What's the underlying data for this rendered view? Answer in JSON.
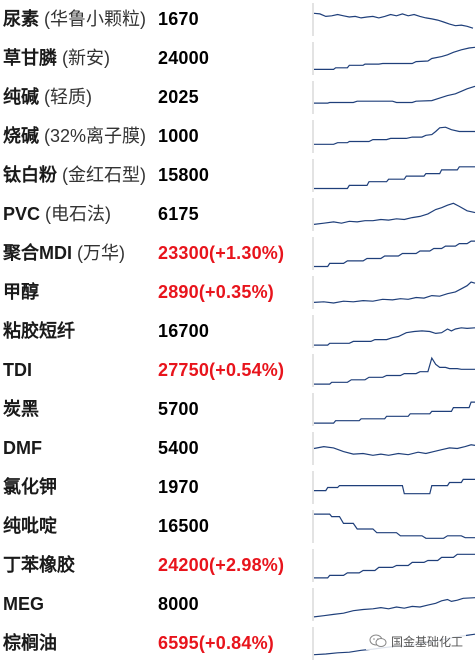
{
  "rows": [
    {
      "name": "尿素",
      "sub": " (华鲁小颗粒)",
      "price": "1670",
      "up": false,
      "spark": [
        [
          0,
          0.7
        ],
        [
          6,
          0.68
        ],
        [
          12,
          0.6
        ],
        [
          18,
          0.62
        ],
        [
          24,
          0.66
        ],
        [
          30,
          0.62
        ],
        [
          36,
          0.58
        ],
        [
          42,
          0.6
        ],
        [
          48,
          0.55
        ],
        [
          54,
          0.58
        ],
        [
          60,
          0.6
        ],
        [
          66,
          0.55
        ],
        [
          72,
          0.6
        ],
        [
          78,
          0.66
        ],
        [
          84,
          0.62
        ],
        [
          90,
          0.68
        ],
        [
          96,
          0.62
        ],
        [
          102,
          0.66
        ],
        [
          108,
          0.6
        ],
        [
          114,
          0.55
        ],
        [
          120,
          0.52
        ],
        [
          126,
          0.48
        ],
        [
          132,
          0.42
        ],
        [
          138,
          0.35
        ],
        [
          144,
          0.3
        ],
        [
          150,
          0.32
        ],
        [
          156,
          0.28
        ],
        [
          162,
          0.22
        ]
      ]
    },
    {
      "name": "草甘膦",
      "sub": " (新安)",
      "price": "24000",
      "up": false,
      "spark": [
        [
          0,
          0.15
        ],
        [
          10,
          0.15
        ],
        [
          20,
          0.15
        ],
        [
          22,
          0.2
        ],
        [
          34,
          0.2
        ],
        [
          36,
          0.28
        ],
        [
          50,
          0.28
        ],
        [
          52,
          0.32
        ],
        [
          66,
          0.32
        ],
        [
          70,
          0.34
        ],
        [
          100,
          0.34
        ],
        [
          104,
          0.4
        ],
        [
          116,
          0.42
        ],
        [
          120,
          0.5
        ],
        [
          130,
          0.56
        ],
        [
          136,
          0.62
        ],
        [
          142,
          0.7
        ],
        [
          150,
          0.78
        ],
        [
          158,
          0.84
        ],
        [
          164,
          0.86
        ]
      ]
    },
    {
      "name": "纯碱",
      "sub": " (轻质)",
      "price": "2025",
      "up": false,
      "spark": [
        [
          0,
          0.32
        ],
        [
          14,
          0.32
        ],
        [
          16,
          0.34
        ],
        [
          40,
          0.34
        ],
        [
          44,
          0.38
        ],
        [
          80,
          0.38
        ],
        [
          84,
          0.34
        ],
        [
          100,
          0.34
        ],
        [
          104,
          0.38
        ],
        [
          120,
          0.4
        ],
        [
          128,
          0.48
        ],
        [
          136,
          0.56
        ],
        [
          144,
          0.62
        ],
        [
          150,
          0.7
        ],
        [
          156,
          0.78
        ],
        [
          164,
          0.86
        ]
      ]
    },
    {
      "name": "烧碱",
      "sub": " (32%离子膜)",
      "price": "1000",
      "up": false,
      "spark": [
        [
          0,
          0.25
        ],
        [
          20,
          0.25
        ],
        [
          24,
          0.3
        ],
        [
          34,
          0.3
        ],
        [
          36,
          0.34
        ],
        [
          56,
          0.34
        ],
        [
          60,
          0.4
        ],
        [
          74,
          0.4
        ],
        [
          78,
          0.44
        ],
        [
          94,
          0.44
        ],
        [
          100,
          0.48
        ],
        [
          110,
          0.48
        ],
        [
          114,
          0.54
        ],
        [
          120,
          0.56
        ],
        [
          124,
          0.66
        ],
        [
          128,
          0.78
        ],
        [
          134,
          0.8
        ],
        [
          140,
          0.72
        ],
        [
          148,
          0.66
        ],
        [
          156,
          0.66
        ],
        [
          164,
          0.66
        ]
      ]
    },
    {
      "name": "钛白粉",
      "sub": " (金红石型)",
      "price": "15800",
      "up": false,
      "spark": [
        [
          0,
          0.08
        ],
        [
          34,
          0.08
        ],
        [
          36,
          0.18
        ],
        [
          54,
          0.18
        ],
        [
          56,
          0.3
        ],
        [
          74,
          0.3
        ],
        [
          76,
          0.38
        ],
        [
          92,
          0.38
        ],
        [
          94,
          0.48
        ],
        [
          112,
          0.48
        ],
        [
          114,
          0.56
        ],
        [
          128,
          0.56
        ],
        [
          130,
          0.68
        ],
        [
          146,
          0.68
        ],
        [
          148,
          0.78
        ],
        [
          164,
          0.78
        ]
      ]
    },
    {
      "name": "PVC",
      "sub": " (电石法)",
      "price": "6175",
      "up": false,
      "spark": [
        [
          0,
          0.18
        ],
        [
          10,
          0.22
        ],
        [
          20,
          0.26
        ],
        [
          28,
          0.22
        ],
        [
          36,
          0.28
        ],
        [
          44,
          0.26
        ],
        [
          52,
          0.3
        ],
        [
          60,
          0.3
        ],
        [
          68,
          0.34
        ],
        [
          76,
          0.32
        ],
        [
          84,
          0.36
        ],
        [
          92,
          0.34
        ],
        [
          100,
          0.4
        ],
        [
          108,
          0.44
        ],
        [
          116,
          0.52
        ],
        [
          124,
          0.66
        ],
        [
          130,
          0.72
        ],
        [
          136,
          0.8
        ],
        [
          142,
          0.86
        ],
        [
          148,
          0.76
        ],
        [
          156,
          0.62
        ],
        [
          164,
          0.56
        ]
      ]
    },
    {
      "name": "聚合MDI",
      "sub": " (万华)",
      "price": "23300(+1.30%)",
      "up": true,
      "spark": [
        [
          0,
          0.08
        ],
        [
          14,
          0.08
        ],
        [
          16,
          0.18
        ],
        [
          30,
          0.18
        ],
        [
          34,
          0.26
        ],
        [
          50,
          0.26
        ],
        [
          54,
          0.34
        ],
        [
          68,
          0.34
        ],
        [
          72,
          0.42
        ],
        [
          86,
          0.42
        ],
        [
          90,
          0.5
        ],
        [
          104,
          0.5
        ],
        [
          108,
          0.58
        ],
        [
          118,
          0.58
        ],
        [
          122,
          0.66
        ],
        [
          130,
          0.66
        ],
        [
          134,
          0.74
        ],
        [
          144,
          0.74
        ],
        [
          148,
          0.82
        ],
        [
          156,
          0.82
        ],
        [
          160,
          0.9
        ],
        [
          164,
          0.9
        ]
      ]
    },
    {
      "name": "甲醇",
      "sub": "",
      "price": "2890(+0.35%)",
      "up": true,
      "spark": [
        [
          0,
          0.18
        ],
        [
          10,
          0.2
        ],
        [
          20,
          0.16
        ],
        [
          30,
          0.22
        ],
        [
          40,
          0.2
        ],
        [
          50,
          0.24
        ],
        [
          60,
          0.22
        ],
        [
          70,
          0.28
        ],
        [
          80,
          0.26
        ],
        [
          88,
          0.3
        ],
        [
          96,
          0.28
        ],
        [
          104,
          0.34
        ],
        [
          112,
          0.32
        ],
        [
          120,
          0.4
        ],
        [
          128,
          0.38
        ],
        [
          136,
          0.46
        ],
        [
          144,
          0.52
        ],
        [
          150,
          0.62
        ],
        [
          156,
          0.72
        ],
        [
          160,
          0.84
        ],
        [
          164,
          0.8
        ]
      ]
    },
    {
      "name": "粘胶短纤",
      "sub": "",
      "price": "16700",
      "up": false,
      "spark": [
        [
          0,
          0.06
        ],
        [
          14,
          0.06
        ],
        [
          16,
          0.12
        ],
        [
          36,
          0.12
        ],
        [
          40,
          0.18
        ],
        [
          58,
          0.18
        ],
        [
          62,
          0.24
        ],
        [
          74,
          0.24
        ],
        [
          80,
          0.3
        ],
        [
          86,
          0.34
        ],
        [
          94,
          0.46
        ],
        [
          102,
          0.5
        ],
        [
          110,
          0.52
        ],
        [
          118,
          0.5
        ],
        [
          124,
          0.44
        ],
        [
          130,
          0.46
        ],
        [
          136,
          0.58
        ],
        [
          140,
          0.52
        ],
        [
          144,
          0.58
        ],
        [
          150,
          0.62
        ],
        [
          156,
          0.6
        ],
        [
          164,
          0.62
        ]
      ]
    },
    {
      "name": "TDI",
      "sub": "",
      "price": "27750(+0.54%)",
      "up": true,
      "spark": [
        [
          0,
          0.06
        ],
        [
          16,
          0.06
        ],
        [
          18,
          0.12
        ],
        [
          34,
          0.12
        ],
        [
          38,
          0.2
        ],
        [
          52,
          0.2
        ],
        [
          56,
          0.28
        ],
        [
          70,
          0.28
        ],
        [
          74,
          0.34
        ],
        [
          88,
          0.34
        ],
        [
          92,
          0.4
        ],
        [
          104,
          0.4
        ],
        [
          108,
          0.46
        ],
        [
          116,
          0.46
        ],
        [
          120,
          0.9
        ],
        [
          124,
          0.7
        ],
        [
          128,
          0.6
        ],
        [
          134,
          0.6
        ],
        [
          138,
          0.56
        ],
        [
          146,
          0.56
        ],
        [
          150,
          0.54
        ],
        [
          164,
          0.54
        ]
      ]
    },
    {
      "name": "炭黑",
      "sub": "",
      "price": "5700",
      "up": false,
      "spark": [
        [
          0,
          0.06
        ],
        [
          20,
          0.06
        ],
        [
          22,
          0.14
        ],
        [
          46,
          0.14
        ],
        [
          48,
          0.2
        ],
        [
          72,
          0.2
        ],
        [
          74,
          0.28
        ],
        [
          96,
          0.28
        ],
        [
          98,
          0.36
        ],
        [
          118,
          0.36
        ],
        [
          120,
          0.44
        ],
        [
          140,
          0.44
        ],
        [
          142,
          0.56
        ],
        [
          158,
          0.56
        ],
        [
          160,
          0.74
        ],
        [
          164,
          0.74
        ]
      ]
    },
    {
      "name": "DMF",
      "sub": "",
      "price": "5400",
      "up": false,
      "spark": [
        [
          0,
          0.5
        ],
        [
          10,
          0.56
        ],
        [
          20,
          0.52
        ],
        [
          30,
          0.4
        ],
        [
          40,
          0.32
        ],
        [
          50,
          0.34
        ],
        [
          60,
          0.28
        ],
        [
          68,
          0.32
        ],
        [
          76,
          0.28
        ],
        [
          86,
          0.34
        ],
        [
          96,
          0.3
        ],
        [
          106,
          0.38
        ],
        [
          114,
          0.34
        ],
        [
          122,
          0.4
        ],
        [
          130,
          0.46
        ],
        [
          138,
          0.52
        ],
        [
          146,
          0.5
        ],
        [
          154,
          0.56
        ],
        [
          160,
          0.62
        ],
        [
          164,
          0.6
        ]
      ]
    },
    {
      "name": "氯化钾",
      "sub": "",
      "price": "1970",
      "up": false,
      "spark": [
        [
          0,
          0.4
        ],
        [
          12,
          0.4
        ],
        [
          14,
          0.5
        ],
        [
          24,
          0.5
        ],
        [
          26,
          0.56
        ],
        [
          90,
          0.56
        ],
        [
          92,
          0.3
        ],
        [
          118,
          0.3
        ],
        [
          120,
          0.56
        ],
        [
          136,
          0.56
        ],
        [
          138,
          0.66
        ],
        [
          150,
          0.66
        ],
        [
          152,
          0.76
        ],
        [
          164,
          0.76
        ]
      ]
    },
    {
      "name": "纯吡啶",
      "sub": "",
      "price": "16500",
      "up": false,
      "spark": [
        [
          0,
          0.9
        ],
        [
          16,
          0.9
        ],
        [
          18,
          0.82
        ],
        [
          26,
          0.82
        ],
        [
          30,
          0.6
        ],
        [
          40,
          0.6
        ],
        [
          44,
          0.42
        ],
        [
          60,
          0.42
        ],
        [
          64,
          0.3
        ],
        [
          84,
          0.3
        ],
        [
          88,
          0.2
        ],
        [
          110,
          0.2
        ],
        [
          114,
          0.12
        ],
        [
          132,
          0.12
        ],
        [
          136,
          0.2
        ],
        [
          150,
          0.2
        ],
        [
          154,
          0.14
        ],
        [
          164,
          0.14
        ]
      ]
    },
    {
      "name": "丁苯橡胶",
      "sub": "",
      "price": "24200(+2.98%)",
      "up": true,
      "spark": [
        [
          0,
          0.1
        ],
        [
          14,
          0.1
        ],
        [
          16,
          0.18
        ],
        [
          30,
          0.18
        ],
        [
          34,
          0.26
        ],
        [
          46,
          0.26
        ],
        [
          50,
          0.34
        ],
        [
          62,
          0.34
        ],
        [
          66,
          0.44
        ],
        [
          80,
          0.44
        ],
        [
          84,
          0.5
        ],
        [
          96,
          0.5
        ],
        [
          100,
          0.6
        ],
        [
          112,
          0.6
        ],
        [
          116,
          0.66
        ],
        [
          126,
          0.66
        ],
        [
          130,
          0.76
        ],
        [
          142,
          0.76
        ],
        [
          146,
          0.86
        ],
        [
          164,
          0.86
        ]
      ]
    },
    {
      "name": "MEG",
      "sub": "",
      "price": "8000",
      "up": false,
      "spark": [
        [
          0,
          0.1
        ],
        [
          10,
          0.14
        ],
        [
          20,
          0.18
        ],
        [
          30,
          0.22
        ],
        [
          40,
          0.3
        ],
        [
          50,
          0.34
        ],
        [
          60,
          0.36
        ],
        [
          68,
          0.4
        ],
        [
          76,
          0.36
        ],
        [
          84,
          0.42
        ],
        [
          92,
          0.38
        ],
        [
          100,
          0.44
        ],
        [
          108,
          0.42
        ],
        [
          116,
          0.48
        ],
        [
          124,
          0.54
        ],
        [
          130,
          0.62
        ],
        [
          136,
          0.66
        ],
        [
          140,
          0.6
        ],
        [
          146,
          0.64
        ],
        [
          152,
          0.7
        ],
        [
          164,
          0.72
        ]
      ]
    },
    {
      "name": "棕榈油",
      "sub": "",
      "price": "6595(+0.84%)",
      "up": true,
      "spark": [
        [
          0,
          0.14
        ],
        [
          12,
          0.16
        ],
        [
          24,
          0.2
        ],
        [
          36,
          0.22
        ],
        [
          48,
          0.28
        ],
        [
          60,
          0.32
        ],
        [
          70,
          0.36
        ],
        [
          80,
          0.4
        ],
        [
          90,
          0.42
        ],
        [
          100,
          0.44
        ],
        [
          110,
          0.5
        ],
        [
          120,
          0.56
        ],
        [
          130,
          0.62
        ],
        [
          140,
          0.68
        ],
        [
          150,
          0.74
        ],
        [
          164,
          0.8
        ]
      ]
    }
  ],
  "watermark": {
    "text": "国金基础化工",
    "icon": "wechat-icon"
  },
  "colors": {
    "up": "#e8141c",
    "line": "#1f3f7a",
    "text": "#1a1a1a"
  }
}
